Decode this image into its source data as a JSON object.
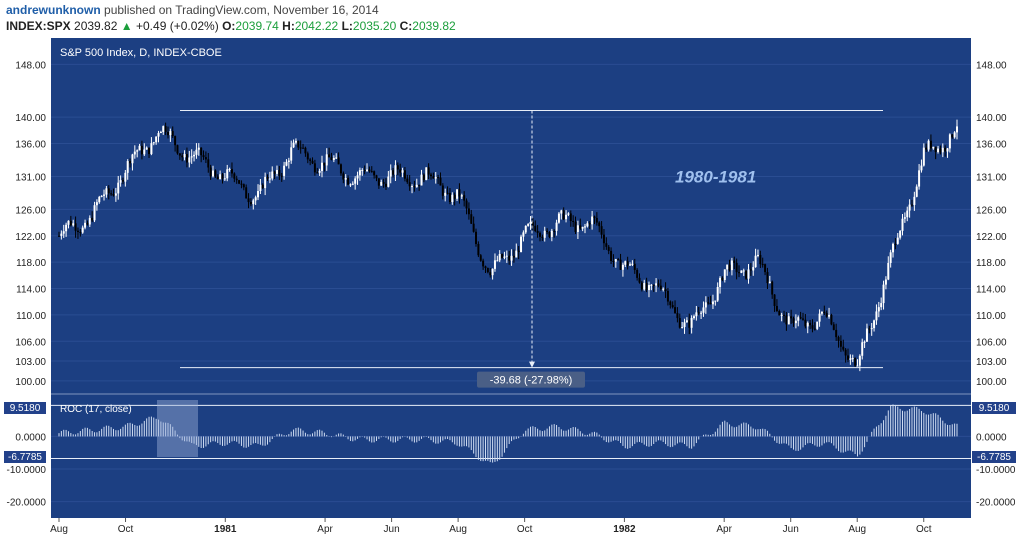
{
  "header": {
    "author": "andrewunknown",
    "published": "published on TradingView.com, November 16, 2014",
    "symbol": "INDEX:SPX",
    "last": "2039.82",
    "change_arrow": "▲",
    "change": "+0.49 (+0.02%)",
    "o_label": "O:",
    "o_value": "2039.74",
    "h_label": "H:",
    "h_value": "2042.22",
    "l_label": "L:",
    "l_value": "2035.20",
    "c_label": "C:",
    "c_value": "2039.82"
  },
  "chart": {
    "title": "S&P 500 Index, D, INDEX-CBOE",
    "annotation": "1980-1981",
    "measure_label": "-39.68 (-27.98%)",
    "roc_title": "ROC (17, close)",
    "roc_upper_badge": "9.5180",
    "roc_lower_badge": "-6.7785",
    "colors": {
      "background": "#1c3f82",
      "bar_up": "#ffffff",
      "bar_down": "#000000",
      "annotation": "#9fc0ee",
      "line": "#e8eef8"
    }
  },
  "chart_data": [
    {
      "type": "candlestick",
      "title": "S&P 500 Index, D, INDEX-CBOE",
      "ylim": [
        98,
        152
      ],
      "y_ticks": [
        "148.00",
        "140.00",
        "136.00",
        "131.00",
        "126.00",
        "122.00",
        "118.00",
        "114.00",
        "110.00",
        "106.00",
        "103.00",
        "100.00"
      ],
      "x_ticks": [
        "Aug",
        "Oct",
        "1981",
        "Apr",
        "Jun",
        "Aug",
        "Oct",
        "1982",
        "Apr",
        "Jun",
        "Aug",
        "Oct"
      ],
      "series": [
        {
          "x": [
            "1980-08",
            "1980-09",
            "1980-10",
            "1980-11",
            "1980-12",
            "1981-01",
            "1981-02",
            "1981-03",
            "1981-04",
            "1981-05",
            "1981-06",
            "1981-07",
            "1981-08",
            "1981-09",
            "1981-10",
            "1981-11",
            "1981-12",
            "1982-01",
            "1982-02",
            "1982-03",
            "1982-04",
            "1982-05",
            "1982-06",
            "1982-07",
            "1982-08",
            "1982-09",
            "1982-10",
            "1982-11"
          ],
          "values": [
            122,
            125,
            132,
            138,
            134,
            131,
            128,
            135,
            133,
            131,
            131,
            131,
            128,
            116,
            122,
            124,
            124,
            117,
            114,
            108,
            116,
            118,
            108,
            110,
            102,
            118,
            134,
            138
          ]
        }
      ],
      "annotations": [
        "1980-1981",
        "-39.68 (-27.98%)"
      ]
    },
    {
      "type": "bar",
      "title": "ROC (17, close)",
      "ylim": [
        -25,
        13
      ],
      "y_ticks": [
        "0.0000",
        "-10.0000",
        "-20.0000"
      ],
      "reference_lines": [
        9.518,
        -6.7785
      ],
      "series": [
        {
          "x": [
            "1980-08",
            "1980-09",
            "1980-10",
            "1980-11",
            "1980-12",
            "1981-01",
            "1981-02",
            "1981-03",
            "1981-04",
            "1981-05",
            "1981-06",
            "1981-07",
            "1981-08",
            "1981-09",
            "1981-10",
            "1981-11",
            "1981-12",
            "1982-01",
            "1982-02",
            "1982-03",
            "1982-04",
            "1982-05",
            "1982-06",
            "1982-07",
            "1982-08",
            "1982-09",
            "1982-10",
            "1982-11"
          ],
          "values": [
            1,
            2,
            3,
            6,
            -3,
            -2,
            -3,
            2,
            1,
            -1,
            -1,
            -1,
            -2,
            -9,
            2,
            3,
            1,
            -3,
            -2,
            -3,
            4,
            3,
            -4,
            -2,
            -6,
            9,
            8,
            3
          ]
        }
      ]
    }
  ]
}
